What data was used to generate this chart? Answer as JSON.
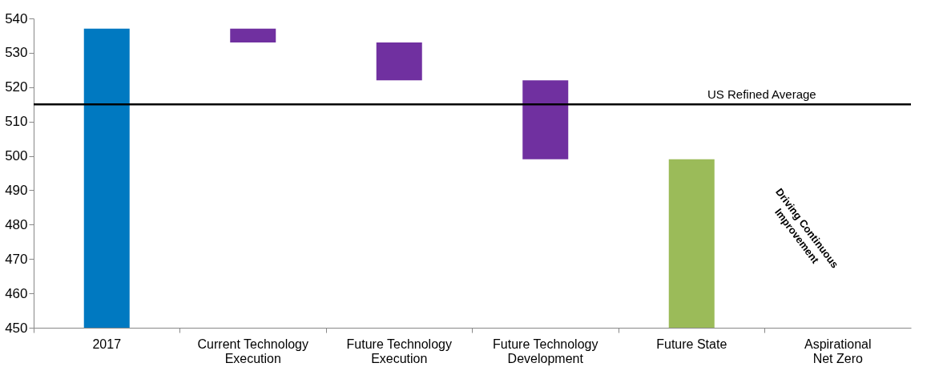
{
  "chart_data": {
    "type": "bar",
    "categories": [
      "2017",
      "Current Technology Execution",
      "Future Technology Execution",
      "Future Technology Development",
      "Future State",
      "Aspirational Net Zero"
    ],
    "values": [
      87,
      4,
      11,
      23,
      49,
      null
    ],
    "base": [
      450,
      533,
      522,
      499,
      450,
      null
    ],
    "colors": [
      "#0079c1",
      "#7030a0",
      "#7030a0",
      "#7030a0",
      "#9bbb59",
      null
    ],
    "ylim": [
      450,
      540
    ],
    "yticks": [
      450,
      460,
      470,
      480,
      490,
      500,
      510,
      520,
      530,
      540
    ],
    "grid": false,
    "ref_lines": [
      {
        "axis": "y",
        "value": 515,
        "label": "US Refined Average",
        "color": "#000000"
      }
    ],
    "annotations": [
      "Driving Continuous Improvement"
    ]
  }
}
